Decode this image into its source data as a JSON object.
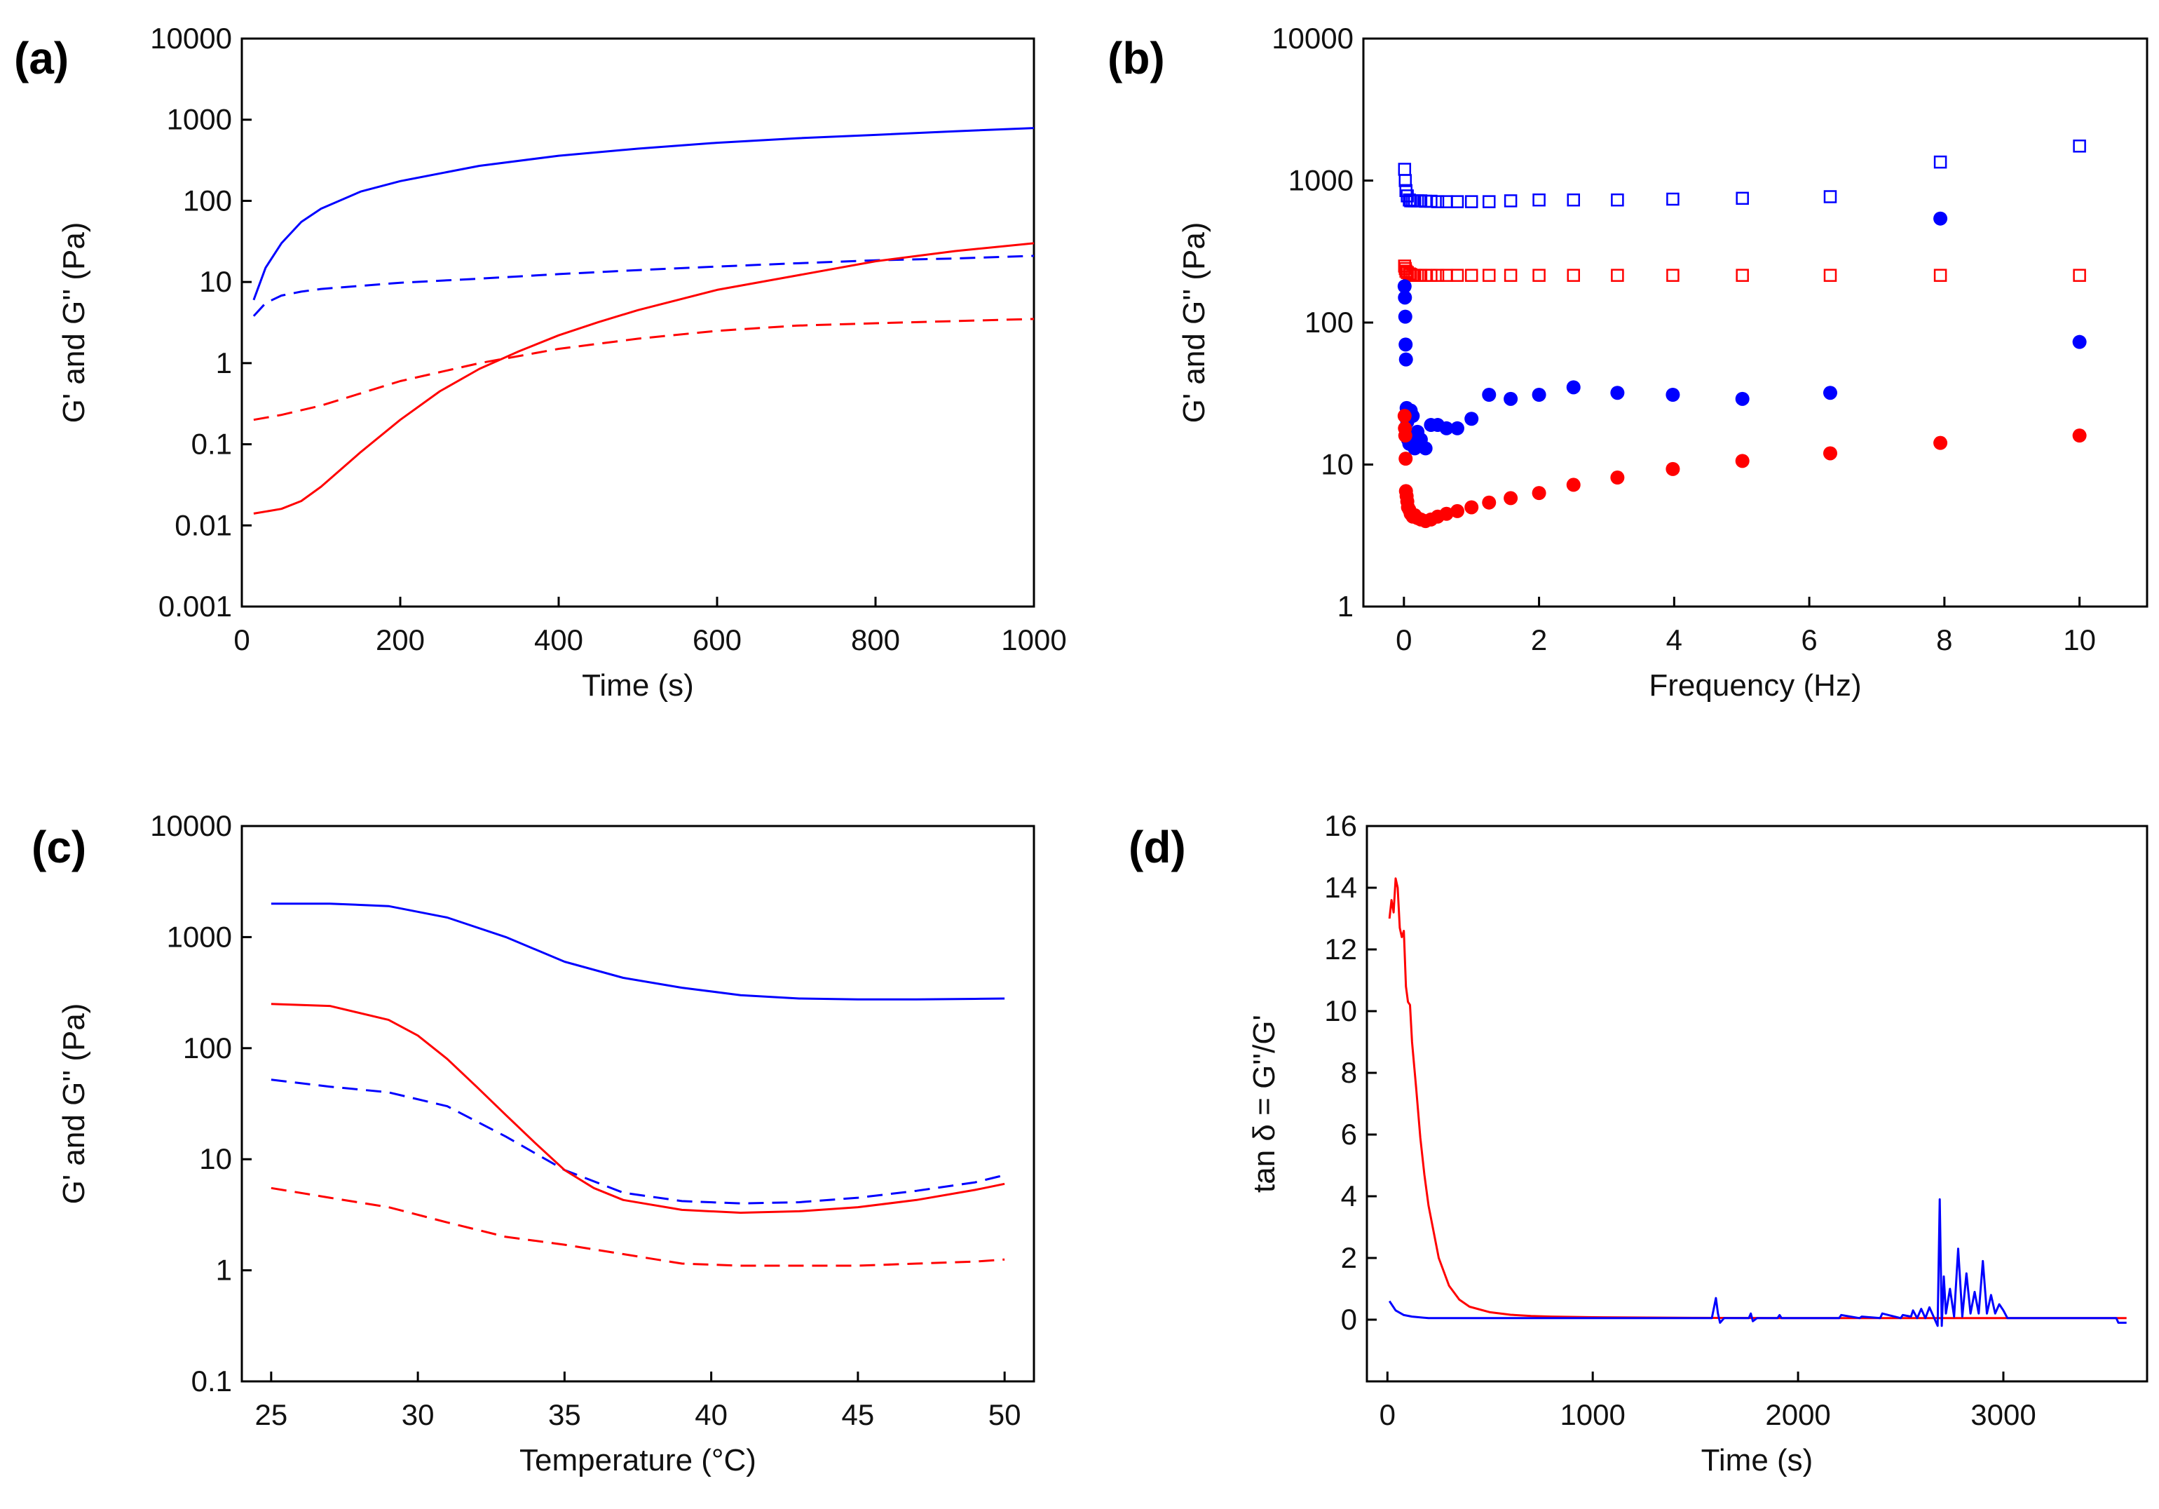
{
  "colors": {
    "blue": "#0000ff",
    "red": "#ff0000",
    "axis": "#000000"
  },
  "chart_data": [
    {
      "id": "a",
      "type": "line",
      "panel_label": "(a)",
      "xlabel": "Time (s)",
      "ylabel": "G' and G'' (Pa)",
      "xscale": "linear",
      "yscale": "log",
      "xlim": [
        0,
        1000
      ],
      "ylim": [
        0.001,
        10000
      ],
      "xticks": [
        0,
        200,
        400,
        600,
        800,
        1000
      ],
      "xtick_labels": [
        "0",
        "200",
        "400",
        "600",
        "800",
        "1000"
      ],
      "yticks": [
        0.001,
        0.01,
        0.1,
        1,
        10,
        100,
        1000,
        10000
      ],
      "ytick_labels": [
        "0.001",
        "0.01",
        "0.1",
        "1",
        "10",
        "100",
        "1000",
        "10000"
      ],
      "series": [
        {
          "name": "G' blue",
          "color": "#0000ff",
          "dash": "solid",
          "x": [
            15,
            30,
            50,
            75,
            100,
            150,
            200,
            300,
            400,
            500,
            600,
            700,
            800,
            900,
            1000
          ],
          "y": [
            6,
            15,
            30,
            55,
            80,
            130,
            175,
            270,
            360,
            440,
            520,
            590,
            650,
            720,
            790
          ]
        },
        {
          "name": "G'' blue",
          "color": "#0000ff",
          "dash": "dashed",
          "x": [
            15,
            30,
            50,
            75,
            100,
            200,
            300,
            400,
            500,
            600,
            700,
            800,
            900,
            1000
          ],
          "y": [
            3.8,
            5.5,
            6.8,
            7.6,
            8.2,
            9.8,
            11,
            12.5,
            14,
            15.5,
            17,
            18.5,
            19.5,
            21
          ]
        },
        {
          "name": "G' red",
          "color": "#ff0000",
          "dash": "solid",
          "x": [
            15,
            50,
            75,
            100,
            150,
            200,
            250,
            300,
            350,
            400,
            450,
            500,
            600,
            700,
            800,
            900,
            1000
          ],
          "y": [
            0.014,
            0.016,
            0.02,
            0.03,
            0.08,
            0.2,
            0.45,
            0.85,
            1.4,
            2.2,
            3.2,
            4.5,
            8,
            12,
            18,
            24,
            30
          ]
        },
        {
          "name": "G'' red",
          "color": "#ff0000",
          "dash": "dashed",
          "x": [
            15,
            50,
            100,
            200,
            300,
            400,
            500,
            600,
            700,
            800,
            900,
            1000
          ],
          "y": [
            0.2,
            0.23,
            0.3,
            0.6,
            1.0,
            1.5,
            2.0,
            2.5,
            2.9,
            3.1,
            3.3,
            3.5
          ]
        }
      ]
    },
    {
      "id": "b",
      "type": "scatter",
      "panel_label": "(b)",
      "xlabel": "Frequency (Hz)",
      "ylabel": "G' and G'' (Pa)",
      "xscale": "linear",
      "yscale": "log",
      "xlim": [
        -0.6,
        11
      ],
      "ylim": [
        1,
        10000
      ],
      "xticks": [
        0,
        2,
        4,
        6,
        8,
        10
      ],
      "xtick_labels": [
        "0",
        "2",
        "4",
        "6",
        "8",
        "10"
      ],
      "yticks": [
        1,
        10,
        100,
        1000,
        10000
      ],
      "ytick_labels": [
        "1",
        "10",
        "100",
        "1000",
        "10000"
      ],
      "series": [
        {
          "name": "blue open squares",
          "color": "#0000ff",
          "marker": "square-open",
          "x": [
            0.01,
            0.02,
            0.03,
            0.05,
            0.08,
            0.1,
            0.13,
            0.16,
            0.2,
            0.25,
            0.32,
            0.4,
            0.5,
            0.63,
            0.79,
            1.0,
            1.26,
            1.58,
            2.0,
            2.51,
            3.16,
            3.98,
            5.01,
            6.31,
            7.94,
            10.0
          ],
          "y": [
            1200,
            1000,
            850,
            780,
            730,
            720,
            720,
            720,
            720,
            720,
            715,
            715,
            710,
            710,
            710,
            710,
            710,
            720,
            730,
            730,
            730,
            740,
            750,
            770,
            1350,
            1750
          ]
        },
        {
          "name": "red open squares",
          "color": "#ff0000",
          "marker": "square-open",
          "x": [
            0.01,
            0.02,
            0.03,
            0.05,
            0.08,
            0.1,
            0.13,
            0.16,
            0.2,
            0.25,
            0.32,
            0.4,
            0.5,
            0.63,
            0.79,
            1.0,
            1.26,
            1.58,
            2.0,
            2.51,
            3.16,
            3.98,
            5.01,
            6.31,
            7.94,
            10.0
          ],
          "y": [
            250,
            240,
            230,
            225,
            220,
            218,
            215,
            215,
            215,
            215,
            215,
            215,
            215,
            215,
            215,
            215,
            215,
            215,
            215,
            215,
            215,
            215,
            215,
            215,
            215,
            215
          ]
        },
        {
          "name": "blue filled circles",
          "color": "#0000ff",
          "marker": "circle-filled",
          "x": [
            0.01,
            0.015,
            0.02,
            0.025,
            0.03,
            0.04,
            0.05,
            0.06,
            0.08,
            0.1,
            0.13,
            0.16,
            0.2,
            0.25,
            0.32,
            0.4,
            0.5,
            0.63,
            0.79,
            1.0,
            1.26,
            1.58,
            2.0,
            2.51,
            3.16,
            3.98,
            5.01,
            6.31,
            7.94,
            10.0
          ],
          "y": [
            180,
            150,
            110,
            70,
            55,
            25,
            20,
            15,
            14,
            24,
            22,
            13,
            17,
            15,
            13,
            19,
            19,
            18,
            18,
            21,
            31,
            29,
            31,
            35,
            32,
            31,
            29,
            32,
            540,
            73
          ]
        },
        {
          "name": "red filled circles",
          "color": "#ff0000",
          "marker": "circle-filled",
          "x": [
            0.01,
            0.015,
            0.02,
            0.025,
            0.03,
            0.04,
            0.05,
            0.06,
            0.08,
            0.1,
            0.13,
            0.16,
            0.2,
            0.25,
            0.32,
            0.4,
            0.5,
            0.63,
            0.79,
            1.0,
            1.26,
            1.58,
            2.0,
            2.51,
            3.16,
            3.98,
            5.01,
            6.31,
            7.94,
            10.0
          ],
          "y": [
            22,
            18,
            16,
            11,
            6.5,
            6,
            5.5,
            5,
            4.8,
            4.5,
            4.3,
            4.4,
            4.2,
            4.1,
            4.0,
            4.1,
            4.3,
            4.5,
            4.7,
            5.0,
            5.4,
            5.8,
            6.3,
            7.2,
            8.1,
            9.3,
            10.6,
            12,
            14.2,
            16
          ]
        }
      ]
    },
    {
      "id": "c",
      "type": "line",
      "panel_label": "(c)",
      "xlabel": "Temperature (°C)",
      "ylabel": "G' and G'' (Pa)",
      "xscale": "linear",
      "yscale": "log",
      "xlim": [
        24,
        51
      ],
      "ylim": [
        0.1,
        10000
      ],
      "xticks": [
        25,
        30,
        35,
        40,
        45,
        50
      ],
      "xtick_labels": [
        "25",
        "30",
        "35",
        "40",
        "45",
        "50"
      ],
      "yticks": [
        0.1,
        1,
        10,
        100,
        1000,
        10000
      ],
      "ytick_labels": [
        "0.1",
        "1",
        "10",
        "100",
        "1000",
        "10000"
      ],
      "series": [
        {
          "name": "G' blue",
          "color": "#0000ff",
          "dash": "solid",
          "x": [
            25,
            27,
            29,
            31,
            33,
            35,
            37,
            39,
            41,
            43,
            45,
            47,
            49,
            50
          ],
          "y": [
            2000,
            2000,
            1900,
            1500,
            1000,
            600,
            430,
            350,
            300,
            280,
            275,
            275,
            278,
            280
          ]
        },
        {
          "name": "G'' blue",
          "color": "#0000ff",
          "dash": "dashed",
          "x": [
            25,
            27,
            29,
            31,
            33,
            35,
            37,
            39,
            41,
            43,
            45,
            47,
            49,
            50
          ],
          "y": [
            52,
            45,
            40,
            30,
            16,
            8,
            5,
            4.2,
            4.0,
            4.1,
            4.5,
            5.2,
            6.2,
            7.2
          ]
        },
        {
          "name": "G' red",
          "color": "#ff0000",
          "dash": "solid",
          "x": [
            25,
            27,
            29,
            30,
            31,
            32,
            33,
            34,
            35,
            36,
            37,
            39,
            41,
            43,
            45,
            47,
            49,
            50
          ],
          "y": [
            250,
            240,
            180,
            130,
            80,
            45,
            25,
            14,
            8,
            5.5,
            4.3,
            3.5,
            3.3,
            3.4,
            3.7,
            4.3,
            5.3,
            6.0
          ]
        },
        {
          "name": "G'' red",
          "color": "#ff0000",
          "dash": "dashed",
          "x": [
            25,
            27,
            29,
            31,
            33,
            35,
            37,
            39,
            41,
            43,
            45,
            47,
            49,
            50
          ],
          "y": [
            5.5,
            4.5,
            3.7,
            2.7,
            2.0,
            1.7,
            1.4,
            1.15,
            1.1,
            1.1,
            1.1,
            1.15,
            1.2,
            1.25
          ]
        }
      ]
    },
    {
      "id": "d",
      "type": "line",
      "panel_label": "(d)",
      "xlabel": "Time (s)",
      "ylabel": "tan δ = G''/G'",
      "xscale": "linear",
      "yscale": "linear",
      "xlim": [
        -100,
        3700
      ],
      "ylim": [
        -2,
        16
      ],
      "xticks": [
        0,
        1000,
        2000,
        3000
      ],
      "xtick_labels": [
        "0",
        "1000",
        "2000",
        "3000"
      ],
      "yticks": [
        0,
        2,
        4,
        6,
        8,
        10,
        12,
        14,
        16
      ],
      "ytick_labels": [
        "0",
        "2",
        "4",
        "6",
        "8",
        "10",
        "12",
        "14",
        "16"
      ],
      "series": [
        {
          "name": "tan delta red",
          "color": "#ff0000",
          "dash": "solid",
          "x": [
            10,
            20,
            30,
            40,
            50,
            60,
            70,
            80,
            90,
            100,
            110,
            120,
            140,
            160,
            180,
            200,
            250,
            300,
            350,
            400,
            500,
            600,
            700,
            800,
            1000,
            1500,
            2000,
            2500,
            3000,
            3600
          ],
          "y": [
            13,
            13.6,
            13.2,
            14.3,
            14,
            12.7,
            12.4,
            12.6,
            10.8,
            10.3,
            10.2,
            9,
            7.5,
            5.9,
            4.7,
            3.7,
            2.0,
            1.1,
            0.65,
            0.42,
            0.24,
            0.16,
            0.12,
            0.1,
            0.08,
            0.06,
            0.05,
            0.05,
            0.05,
            0.05
          ]
        },
        {
          "name": "tan delta blue",
          "color": "#0000ff",
          "dash": "solid",
          "x": [
            10,
            40,
            80,
            120,
            200,
            500,
            1000,
            1100,
            1120,
            1580,
            1600,
            1610,
            1620,
            1640,
            1700,
            1760,
            1770,
            1780,
            1800,
            1900,
            1910,
            1920,
            2200,
            2210,
            2300,
            2310,
            2400,
            2410,
            2500,
            2510,
            2550,
            2560,
            2580,
            2600,
            2620,
            2640,
            2660,
            2680,
            2690,
            2700,
            2710,
            2720,
            2740,
            2760,
            2780,
            2800,
            2820,
            2840,
            2860,
            2880,
            2900,
            2920,
            2940,
            2960,
            2980,
            3000,
            3020,
            3050,
            3100,
            3200,
            3300,
            3400,
            3500,
            3550,
            3560,
            3600
          ],
          "y": [
            0.6,
            0.3,
            0.15,
            0.1,
            0.05,
            0.05,
            0.05,
            0.05,
            0.05,
            0.05,
            0.7,
            0.2,
            -0.1,
            0.05,
            0.05,
            0.05,
            0.2,
            -0.05,
            0.05,
            0.05,
            0.15,
            0.05,
            0.05,
            0.15,
            0.05,
            0.1,
            0.05,
            0.2,
            0.05,
            0.15,
            0.1,
            0.3,
            0.05,
            0.35,
            0.05,
            0.4,
            0.1,
            -0.2,
            3.9,
            -0.2,
            1.4,
            0.2,
            1.0,
            0.1,
            2.3,
            0.1,
            1.5,
            0.2,
            0.9,
            0.2,
            1.9,
            0.2,
            0.8,
            0.2,
            0.5,
            0.3,
            0.05,
            0.05,
            0.05,
            0.05,
            0.05,
            0.05,
            0.05,
            0.05,
            -0.1,
            -0.1
          ]
        }
      ]
    }
  ]
}
